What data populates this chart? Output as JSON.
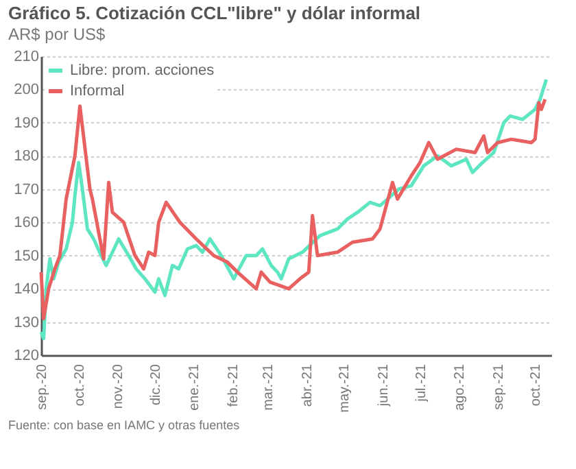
{
  "chart_data": {
    "type": "line",
    "title": "Gráfico 5. Cotización CCL\"libre\" y dólar informal",
    "subtitle": "AR$ por US$",
    "annotations": [
      "Fuente: con base en IAMC y otras fuentes"
    ],
    "xlim": [
      "2020-09-01",
      "2021-10-14"
    ],
    "xticks": [
      {
        "value": "2020-09-01",
        "label": "sep.-20"
      },
      {
        "value": "2020-10-01",
        "label": "oct.-20"
      },
      {
        "value": "2020-11-01",
        "label": "nov.-20"
      },
      {
        "value": "2020-12-01",
        "label": "dic.-20"
      },
      {
        "value": "2021-01-01",
        "label": "ene.-21"
      },
      {
        "value": "2021-02-01",
        "label": "feb.-21"
      },
      {
        "value": "2021-03-01",
        "label": "mar.-21"
      },
      {
        "value": "2021-04-01",
        "label": "abr.-21"
      },
      {
        "value": "2021-05-01",
        "label": "may.-21"
      },
      {
        "value": "2021-06-01",
        "label": "jun.-21"
      },
      {
        "value": "2021-07-01",
        "label": "jul.-21"
      },
      {
        "value": "2021-08-01",
        "label": "ago.-21"
      },
      {
        "value": "2021-09-01",
        "label": "sep.-21"
      },
      {
        "value": "2021-10-01",
        "label": "oct.-21"
      }
    ],
    "ylim": [
      120,
      210
    ],
    "yticks": [
      120,
      130,
      140,
      150,
      160,
      170,
      180,
      190,
      200,
      210
    ],
    "grid": "y",
    "legend": "top left",
    "marker": "none",
    "line_style": "solid",
    "series": [
      {
        "name": "Libre: prom. acciones",
        "color": "#5ee6c3",
        "x": [
          "2020-09-01",
          "2020-09-03",
          "2020-09-05",
          "2020-09-08",
          "2020-09-11",
          "2020-09-15",
          "2020-09-21",
          "2020-09-26",
          "2020-09-28",
          "2020-10-01",
          "2020-10-04",
          "2020-10-08",
          "2020-10-13",
          "2020-10-19",
          "2020-10-23",
          "2020-11-02",
          "2020-11-10",
          "2020-11-16",
          "2020-11-23",
          "2020-12-01",
          "2020-12-04",
          "2020-12-09",
          "2020-12-15",
          "2020-12-20",
          "2020-12-27",
          "2021-01-03",
          "2021-01-08",
          "2021-01-14",
          "2021-01-23",
          "2021-02-02",
          "2021-02-12",
          "2021-02-20",
          "2021-02-25",
          "2021-03-04",
          "2021-03-09",
          "2021-03-12",
          "2021-03-18",
          "2021-03-29",
          "2021-04-12",
          "2021-04-26",
          "2021-05-04",
          "2021-05-12",
          "2021-05-22",
          "2021-05-30",
          "2021-06-14",
          "2021-06-24",
          "2021-07-04",
          "2021-07-15",
          "2021-07-26",
          "2021-08-07",
          "2021-08-12",
          "2021-08-20",
          "2021-08-29",
          "2021-09-06",
          "2021-09-11",
          "2021-09-21",
          "2021-10-01",
          "2021-10-05",
          "2021-10-10"
        ],
        "values": [
          127,
          125,
          140,
          149,
          143,
          148,
          152,
          160,
          168,
          178,
          170,
          158,
          155,
          150,
          147,
          155,
          150,
          146,
          143,
          139,
          143,
          138,
          147,
          146,
          152,
          153,
          151,
          155,
          150,
          143,
          150,
          150,
          152,
          147,
          145,
          143,
          149,
          151,
          156,
          158,
          161,
          163,
          166,
          165,
          170,
          171,
          177,
          180,
          177,
          179,
          175,
          178,
          181,
          190,
          192,
          191,
          194,
          197,
          203
        ]
      },
      {
        "name": "Informal",
        "color": "#e8605f",
        "x": [
          "2020-09-01",
          "2020-09-03",
          "2020-09-07",
          "2020-09-12",
          "2020-09-16",
          "2020-09-21",
          "2020-09-28",
          "2020-10-02",
          "2020-10-10",
          "2020-10-12",
          "2020-10-17",
          "2020-10-21",
          "2020-10-25",
          "2020-10-28",
          "2020-11-06",
          "2020-11-15",
          "2020-11-22",
          "2020-11-26",
          "2020-12-01",
          "2020-12-04",
          "2020-12-10",
          "2020-12-21",
          "2021-01-03",
          "2021-01-17",
          "2021-01-28",
          "2021-02-05",
          "2021-02-20",
          "2021-02-24",
          "2021-03-03",
          "2021-03-18",
          "2021-03-27",
          "2021-04-03",
          "2021-04-06",
          "2021-04-10",
          "2021-04-26",
          "2021-05-08",
          "2021-05-24",
          "2021-05-30",
          "2021-06-09",
          "2021-06-13",
          "2021-06-24",
          "2021-07-01",
          "2021-07-08",
          "2021-07-15",
          "2021-07-30",
          "2021-08-14",
          "2021-08-21",
          "2021-08-24",
          "2021-09-01",
          "2021-09-12",
          "2021-09-28",
          "2021-10-01",
          "2021-10-04",
          "2021-10-06",
          "2021-10-09"
        ],
        "values": [
          145,
          131,
          140,
          146,
          150,
          167,
          180,
          195,
          170,
          167,
          157,
          149,
          172,
          163,
          160,
          150,
          146,
          151,
          150,
          160,
          166,
          160,
          155,
          150,
          148,
          145,
          140,
          145,
          142,
          140,
          143,
          145,
          162,
          150,
          151,
          154,
          155,
          158,
          172,
          167,
          174,
          178,
          184,
          179,
          182,
          181,
          186,
          181,
          184,
          185,
          184,
          185,
          196,
          194,
          197
        ]
      }
    ]
  }
}
